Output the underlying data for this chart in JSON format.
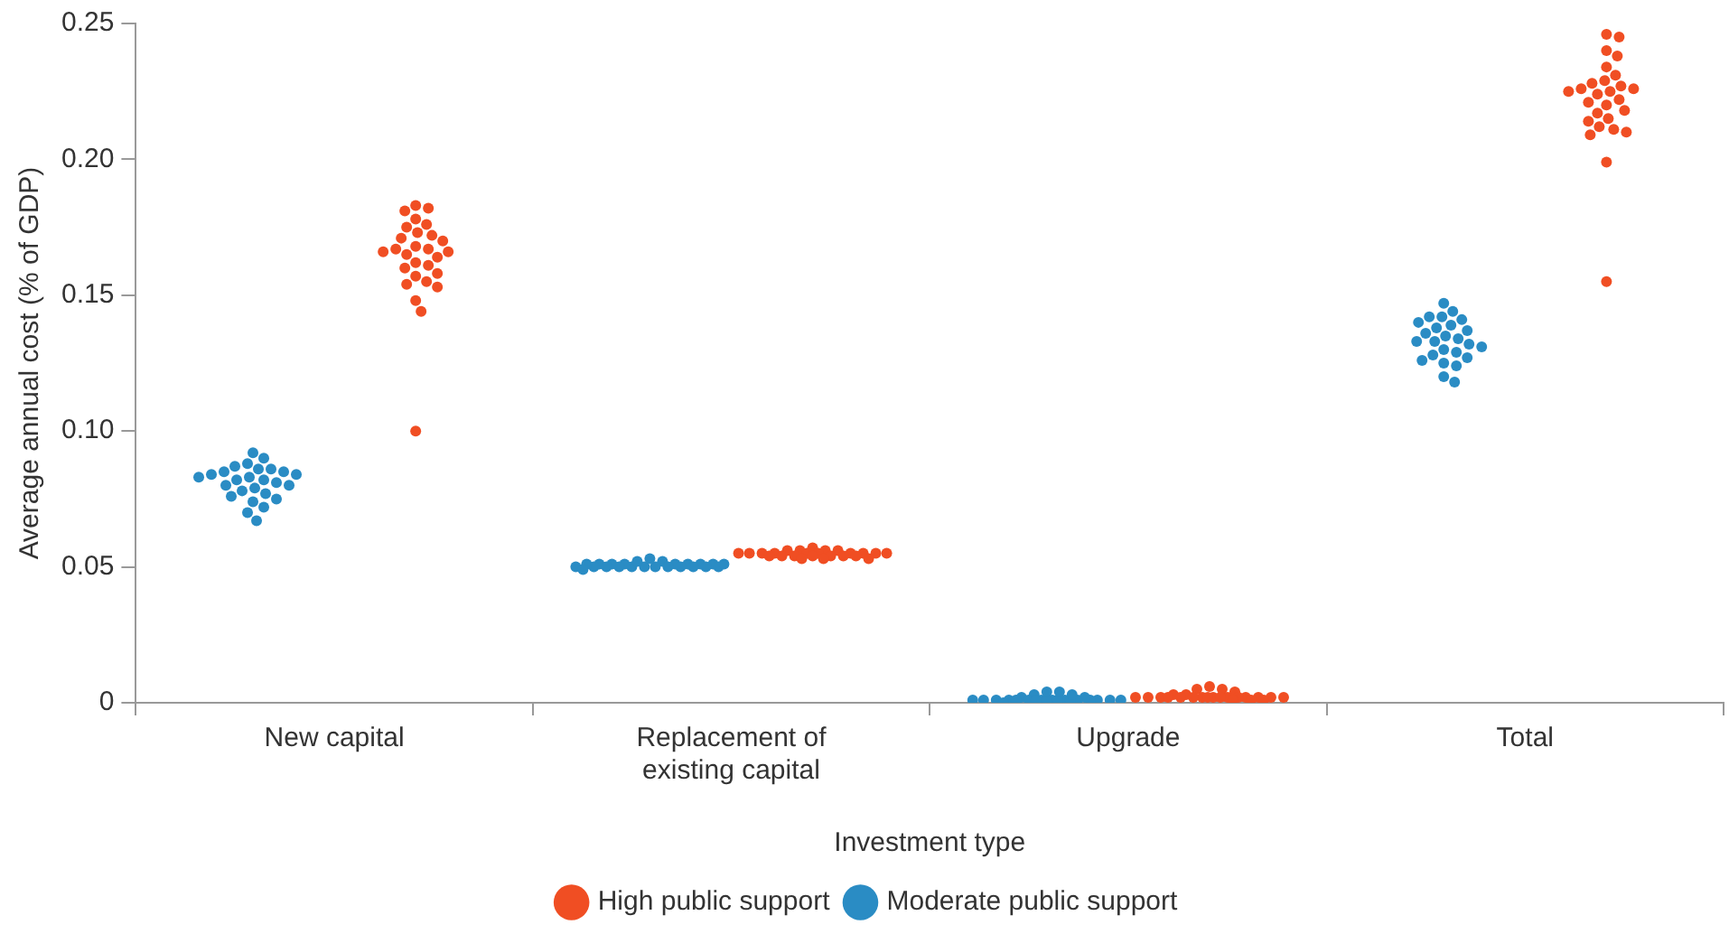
{
  "chart_data": {
    "type": "scatter",
    "xlabel": "Investment type",
    "ylabel": "Average annual cost (% of GDP)",
    "categories": [
      "New capital",
      "Replacement of existing capital",
      "Upgrade",
      "Total"
    ],
    "ylim": [
      0,
      0.25
    ],
    "yticks": [
      0,
      {
        "value": 0.05,
        "label": "0.05"
      },
      {
        "value": 0.1,
        "label": "0.10"
      },
      {
        "value": 0.15,
        "label": "0.15"
      },
      {
        "value": 0.2,
        "label": "0.20"
      },
      {
        "value": 0.25,
        "label": "0.25"
      }
    ],
    "legend": "bottom",
    "marker": "circle",
    "series": [
      {
        "name": "Moderate public support",
        "color": "#2a8cc4",
        "x": [
          "New capital",
          "New capital",
          "New capital",
          "New capital",
          "New capital",
          "New capital",
          "New capital",
          "New capital",
          "New capital",
          "New capital",
          "New capital",
          "New capital",
          "New capital",
          "New capital",
          "New capital",
          "New capital",
          "New capital",
          "New capital",
          "New capital",
          "New capital",
          "New capital",
          "New capital",
          "New capital",
          "New capital",
          "New capital",
          "New capital",
          "Replacement of existing capital",
          "Replacement of existing capital",
          "Replacement of existing capital",
          "Replacement of existing capital",
          "Replacement of existing capital",
          "Replacement of existing capital",
          "Replacement of existing capital",
          "Replacement of existing capital",
          "Replacement of existing capital",
          "Replacement of existing capital",
          "Replacement of existing capital",
          "Replacement of existing capital",
          "Replacement of existing capital",
          "Replacement of existing capital",
          "Replacement of existing capital",
          "Replacement of existing capital",
          "Replacement of existing capital",
          "Replacement of existing capital",
          "Replacement of existing capital",
          "Replacement of existing capital",
          "Replacement of existing capital",
          "Replacement of existing capital",
          "Replacement of existing capital",
          "Replacement of existing capital",
          "Replacement of existing capital",
          "Upgrade",
          "Upgrade",
          "Upgrade",
          "Upgrade",
          "Upgrade",
          "Upgrade",
          "Upgrade",
          "Upgrade",
          "Upgrade",
          "Upgrade",
          "Upgrade",
          "Upgrade",
          "Upgrade",
          "Upgrade",
          "Upgrade",
          "Upgrade",
          "Upgrade",
          "Upgrade",
          "Upgrade",
          "Upgrade",
          "Upgrade",
          "Upgrade",
          "Upgrade",
          "Upgrade",
          "Upgrade",
          "Total",
          "Total",
          "Total",
          "Total",
          "Total",
          "Total",
          "Total",
          "Total",
          "Total",
          "Total",
          "Total",
          "Total",
          "Total",
          "Total",
          "Total",
          "Total",
          "Total",
          "Total",
          "Total",
          "Total",
          "Total",
          "Total",
          "Total",
          "Total",
          "Total"
        ],
        "values": [
          0.092,
          0.09,
          0.088,
          0.087,
          0.086,
          0.086,
          0.085,
          0.085,
          0.084,
          0.084,
          0.083,
          0.083,
          0.082,
          0.082,
          0.081,
          0.08,
          0.08,
          0.079,
          0.078,
          0.077,
          0.076,
          0.075,
          0.074,
          0.072,
          0.07,
          0.067,
          0.052,
          0.051,
          0.051,
          0.051,
          0.051,
          0.051,
          0.051,
          0.051,
          0.05,
          0.05,
          0.05,
          0.05,
          0.05,
          0.05,
          0.05,
          0.05,
          0.05,
          0.05,
          0.05,
          0.05,
          0.051,
          0.051,
          0.052,
          0.053,
          0.049,
          0.003,
          0.002,
          0.001,
          0.001,
          0.001,
          0.001,
          0.001,
          0.001,
          0.001,
          0.001,
          0.001,
          0.001,
          0.001,
          0.001,
          0.001,
          0.001,
          0.001,
          0.001,
          0.001,
          0.001,
          0.002,
          0.003,
          0.004,
          0.004,
          0.0,
          0.147,
          0.144,
          0.142,
          0.142,
          0.141,
          0.14,
          0.139,
          0.138,
          0.137,
          0.136,
          0.135,
          0.134,
          0.133,
          0.133,
          0.132,
          0.131,
          0.13,
          0.129,
          0.128,
          0.127,
          0.126,
          0.125,
          0.124,
          0.12,
          0.118
        ]
      },
      {
        "name": "High public support",
        "color": "#f04e23",
        "x": [
          "New capital",
          "New capital",
          "New capital",
          "New capital",
          "New capital",
          "New capital",
          "New capital",
          "New capital",
          "New capital",
          "New capital",
          "New capital",
          "New capital",
          "New capital",
          "New capital",
          "New capital",
          "New capital",
          "New capital",
          "New capital",
          "New capital",
          "New capital",
          "New capital",
          "New capital",
          "New capital",
          "New capital",
          "New capital",
          "New capital",
          "New capital",
          "New capital",
          "Replacement of existing capital",
          "Replacement of existing capital",
          "Replacement of existing capital",
          "Replacement of existing capital",
          "Replacement of existing capital",
          "Replacement of existing capital",
          "Replacement of existing capital",
          "Replacement of existing capital",
          "Replacement of existing capital",
          "Replacement of existing capital",
          "Replacement of existing capital",
          "Replacement of existing capital",
          "Replacement of existing capital",
          "Replacement of existing capital",
          "Replacement of existing capital",
          "Replacement of existing capital",
          "Replacement of existing capital",
          "Replacement of existing capital",
          "Replacement of existing capital",
          "Replacement of existing capital",
          "Replacement of existing capital",
          "Replacement of existing capital",
          "Replacement of existing capital",
          "Replacement of existing capital",
          "Replacement of existing capital",
          "Upgrade",
          "Upgrade",
          "Upgrade",
          "Upgrade",
          "Upgrade",
          "Upgrade",
          "Upgrade",
          "Upgrade",
          "Upgrade",
          "Upgrade",
          "Upgrade",
          "Upgrade",
          "Upgrade",
          "Upgrade",
          "Upgrade",
          "Upgrade",
          "Upgrade",
          "Upgrade",
          "Upgrade",
          "Upgrade",
          "Upgrade",
          "Upgrade",
          "Upgrade",
          "Upgrade",
          "Upgrade",
          "Total",
          "Total",
          "Total",
          "Total",
          "Total",
          "Total",
          "Total",
          "Total",
          "Total",
          "Total",
          "Total",
          "Total",
          "Total",
          "Total",
          "Total",
          "Total",
          "Total",
          "Total",
          "Total",
          "Total",
          "Total",
          "Total",
          "Total",
          "Total",
          "Total",
          "Total",
          "Total"
        ],
        "values": [
          0.183,
          0.182,
          0.181,
          0.178,
          0.176,
          0.175,
          0.173,
          0.172,
          0.171,
          0.17,
          0.168,
          0.167,
          0.167,
          0.166,
          0.166,
          0.165,
          0.164,
          0.162,
          0.161,
          0.16,
          0.158,
          0.157,
          0.155,
          0.154,
          0.153,
          0.148,
          0.144,
          0.1,
          0.057,
          0.056,
          0.056,
          0.056,
          0.056,
          0.055,
          0.055,
          0.055,
          0.055,
          0.055,
          0.055,
          0.055,
          0.055,
          0.055,
          0.055,
          0.054,
          0.054,
          0.054,
          0.054,
          0.054,
          0.054,
          0.054,
          0.053,
          0.053,
          0.053,
          0.006,
          0.005,
          0.005,
          0.004,
          0.003,
          0.003,
          0.002,
          0.002,
          0.002,
          0.002,
          0.002,
          0.002,
          0.002,
          0.002,
          0.002,
          0.002,
          0.002,
          0.002,
          0.002,
          0.002,
          0.002,
          0.002,
          0.001,
          0.001,
          0.001,
          0.246,
          0.245,
          0.24,
          0.238,
          0.234,
          0.231,
          0.229,
          0.228,
          0.227,
          0.226,
          0.226,
          0.225,
          0.225,
          0.224,
          0.222,
          0.221,
          0.22,
          0.218,
          0.217,
          0.215,
          0.214,
          0.212,
          0.211,
          0.21,
          0.209,
          0.199,
          0.155
        ]
      }
    ]
  }
}
